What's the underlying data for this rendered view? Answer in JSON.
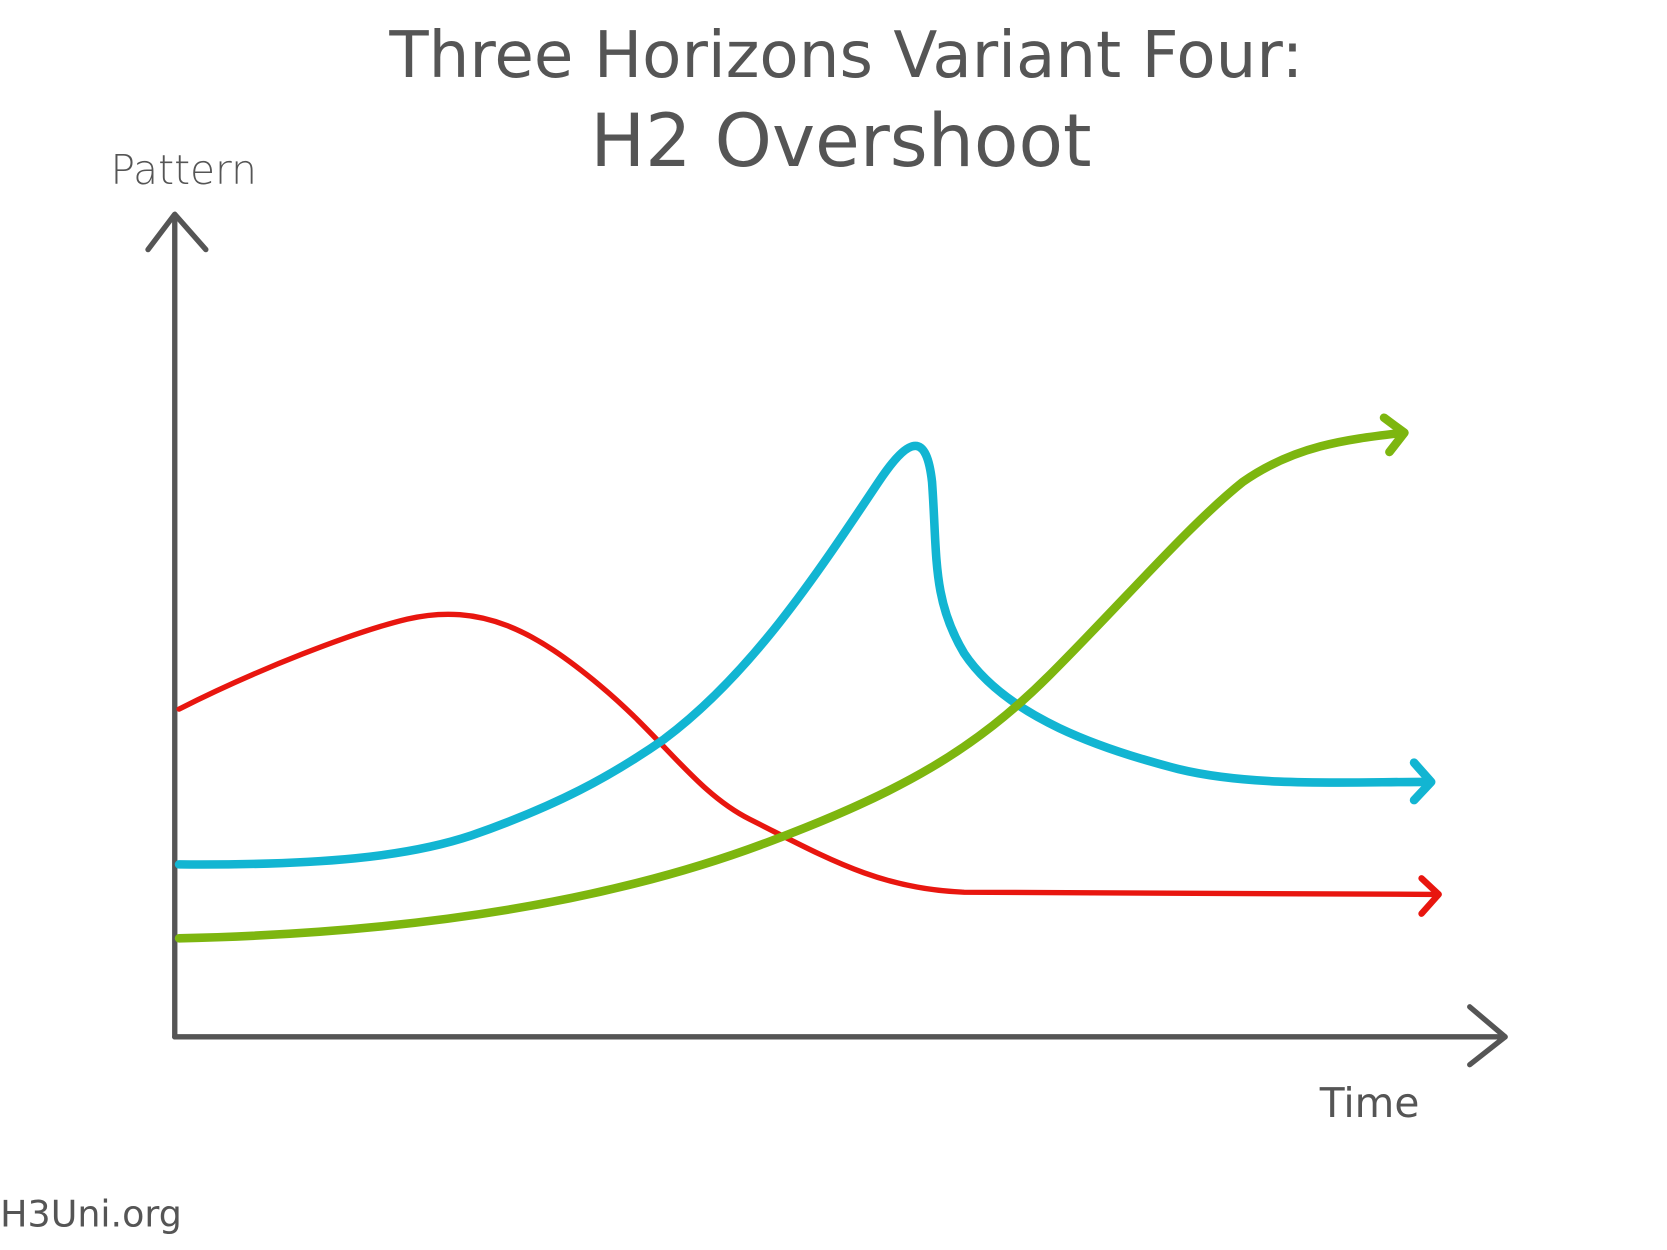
{
  "title": {
    "line1": "Three Horizons Variant Four:",
    "line2": "H2 Overshoot"
  },
  "axes": {
    "y_label": "Pattern",
    "x_label": "Time"
  },
  "footer": "H3Uni.org"
}
